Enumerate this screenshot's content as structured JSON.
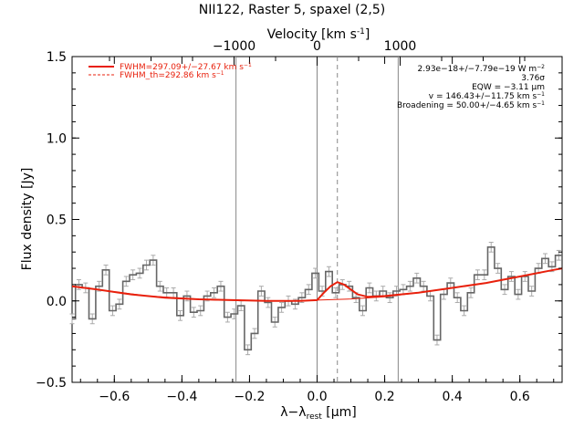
{
  "chart_data": {
    "type": "line",
    "title": "NII122, Raster 5, spaxel (2,5)",
    "xlabel": "λ−λ",
    "xlabel_sub": "rest",
    "xlabel_unit": " [μm]",
    "ylabel": "Flux density [Jy]",
    "top_axis_label": "Velocity [km s",
    "top_axis_label_sup": "-1",
    "top_axis_label_end": "]",
    "xlim": [
      -0.725,
      0.725
    ],
    "ylim": [
      -0.5,
      1.5
    ],
    "x_ticks": [
      -0.6,
      -0.4,
      -0.2,
      0.0,
      0.2,
      0.4,
      0.6
    ],
    "x_tick_labels": [
      "−0.6",
      "−0.4",
      "−0.2",
      "0.0",
      "0.2",
      "0.4",
      "0.6"
    ],
    "y_ticks": [
      -0.5,
      0.0,
      0.5,
      1.0,
      1.5
    ],
    "y_tick_labels": [
      "−0.5",
      "0.0",
      "0.5",
      "1.0",
      "1.5"
    ],
    "top_ticks_velocity": [
      -1000,
      0,
      1000
    ],
    "top_tick_labels": [
      "−1000",
      "0",
      "1000"
    ],
    "velocity_per_um": 4070,
    "vertical_lines": [
      -0.24,
      0.0,
      0.24
    ],
    "dashed_line_x": 0.06,
    "spectrum": {
      "name": "data",
      "bin_centers": [
        -0.725,
        -0.705,
        -0.685,
        -0.665,
        -0.645,
        -0.625,
        -0.605,
        -0.585,
        -0.565,
        -0.545,
        -0.525,
        -0.505,
        -0.485,
        -0.465,
        -0.445,
        -0.425,
        -0.405,
        -0.385,
        -0.365,
        -0.345,
        -0.325,
        -0.305,
        -0.285,
        -0.265,
        -0.245,
        -0.225,
        -0.205,
        -0.185,
        -0.165,
        -0.145,
        -0.125,
        -0.105,
        -0.085,
        -0.065,
        -0.045,
        -0.025,
        -0.005,
        0.015,
        0.035,
        0.055,
        0.075,
        0.095,
        0.115,
        0.135,
        0.155,
        0.175,
        0.195,
        0.215,
        0.235,
        0.255,
        0.275,
        0.295,
        0.315,
        0.335,
        0.355,
        0.375,
        0.395,
        0.415,
        0.435,
        0.455,
        0.475,
        0.495,
        0.515,
        0.535,
        0.555,
        0.575,
        0.595,
        0.615,
        0.635,
        0.655,
        0.675,
        0.695,
        0.715
      ],
      "flux": [
        -0.11,
        0.1,
        0.08,
        -0.11,
        0.09,
        0.19,
        -0.06,
        -0.02,
        0.12,
        0.16,
        0.17,
        0.22,
        0.25,
        0.09,
        0.05,
        0.05,
        -0.09,
        0.03,
        -0.07,
        -0.06,
        0.03,
        0.05,
        0.09,
        -0.1,
        -0.08,
        -0.03,
        -0.3,
        -0.2,
        0.06,
        -0.01,
        -0.13,
        -0.04,
        0.0,
        -0.02,
        0.02,
        0.07,
        0.17,
        0.06,
        0.18,
        0.05,
        0.1,
        0.09,
        0.02,
        -0.06,
        0.08,
        0.03,
        0.06,
        0.02,
        0.06,
        0.07,
        0.09,
        0.14,
        0.09,
        0.03,
        -0.24,
        0.04,
        0.11,
        0.02,
        -0.06,
        0.05,
        0.16,
        0.16,
        0.33,
        0.2,
        0.07,
        0.15,
        0.04,
        0.15,
        0.06,
        0.2,
        0.26,
        0.21,
        0.28
      ],
      "error": 0.03
    },
    "fit": {
      "name": "model",
      "x": [
        -0.725,
        -0.65,
        -0.55,
        -0.45,
        -0.35,
        -0.25,
        -0.15,
        -0.1,
        -0.05,
        0.0,
        0.02,
        0.04,
        0.06,
        0.08,
        0.1,
        0.12,
        0.15,
        0.2,
        0.3,
        0.4,
        0.5,
        0.6,
        0.7,
        0.725
      ],
      "y": [
        0.09,
        0.07,
        0.04,
        0.02,
        0.01,
        0.005,
        0.0,
        0.0,
        0.0,
        0.005,
        0.05,
        0.09,
        0.115,
        0.1,
        0.07,
        0.04,
        0.025,
        0.03,
        0.05,
        0.08,
        0.11,
        0.15,
        0.19,
        0.2
      ]
    },
    "fit_base": {
      "name": "continuum",
      "x": [
        -0.725,
        -0.5,
        -0.3,
        -0.1,
        0.0,
        0.1,
        0.2,
        0.3,
        0.5,
        0.725
      ],
      "y": [
        0.09,
        0.03,
        0.005,
        0.0,
        0.005,
        0.012,
        0.025,
        0.05,
        0.11,
        0.2
      ]
    },
    "legend": [
      {
        "label": "FWHM=297.09+/−27.67 km s",
        "sup": "−1",
        "style": "solid"
      },
      {
        "label": "FWHM_th=292.86 km s",
        "sup": "−1",
        "style": "dashed"
      }
    ],
    "annotations": [
      {
        "text": "2.93e−18+/−7.79e−19 W m",
        "sup": "−2"
      },
      {
        "text": "3.76σ",
        "sup": ""
      },
      {
        "text": "EQW = −3.11 μm",
        "sup": ""
      },
      {
        "text": "v = 146.43+/−11.75 km s",
        "sup": "−1"
      },
      {
        "text": "Broadening = 50.00+/−4.65 km s",
        "sup": "−1"
      }
    ],
    "colors": {
      "fit": "#e8200c",
      "data": "#666666",
      "error": "#aaaaaa",
      "vline": "#888888",
      "axis": "#000000"
    }
  }
}
